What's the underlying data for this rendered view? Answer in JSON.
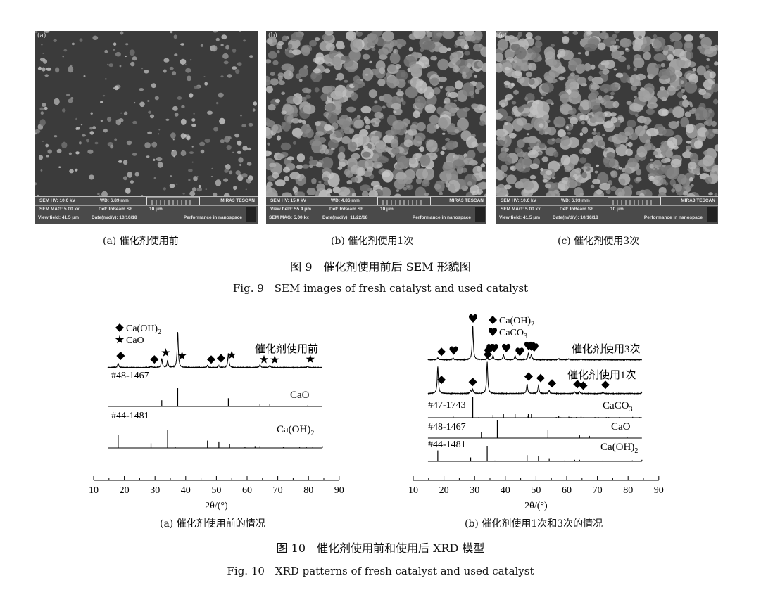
{
  "fig9": {
    "images": [
      {
        "tag": "(a)",
        "caption": "(a) 催化剂使用前",
        "density": 0.35,
        "info": {
          "r1a": "SEM HV: 10.0 kV",
          "r1b": "WD: 6.89 mm",
          "brand": "MIRA3 TESCAN",
          "r2a": "SEM MAG: 5.00 kx",
          "r2b": "Det: InBeam SE",
          "scale": "10 μm",
          "r3a": "View field: 41.5 μm",
          "r3b": "Date(m/d/y): 10/10/18",
          "perf": "Performance in nanospace"
        }
      },
      {
        "tag": "(b)",
        "caption": "(b) 催化剂使用1次",
        "density": 1.0,
        "info": {
          "r1a": "SEM HV: 15.0 kV",
          "r1b": "WD: 4.86 mm",
          "brand": "MIRA3 TESCAN",
          "r2a": "View field: 55.4 μm",
          "r2b": "Det: InBeam SE",
          "scale": "10 μm",
          "r3a": "SEM MAG: 5.00 kx",
          "r3b": "Date(m/d/y): 11/22/18",
          "perf": "Performance in nanospace"
        }
      },
      {
        "tag": "(c)",
        "caption": "(c) 催化剂使用3次",
        "density": 1.1,
        "info": {
          "r1a": "SEM HV: 10.0 kV",
          "r1b": "WD: 6.93 mm",
          "brand": "MIRA3 TESCAN",
          "r2a": "SEM MAG: 5.00 kx",
          "r2b": "Det: InBeam SE",
          "scale": "10 μm",
          "r3a": "View field: 41.5 μm",
          "r3b": "Date(m/d/y): 10/10/18",
          "perf": "Performance in nanospace"
        }
      }
    ],
    "title": "图 9　催化剂使用前后 SEM 形貌图",
    "title_en": "Fig. 9　SEM images of fresh catalyst and used catalyst"
  },
  "fig10": {
    "title": "图 10　催化剂使用前和使用后 XRD 模型",
    "title_en": "Fig. 10　XRD patterns of fresh catalyst and used catalyst"
  },
  "chart_data": [
    {
      "type": "line",
      "caption": "(a) 催化剂使用前的情况",
      "xlabel": "2θ/(°)",
      "xlim": [
        10,
        90
      ],
      "xticks": [
        10,
        20,
        30,
        40,
        50,
        60,
        70,
        80,
        90
      ],
      "legend": [
        {
          "symbol": "diamond",
          "label": "Ca(OH)2"
        },
        {
          "symbol": "star",
          "label": "CaO"
        }
      ],
      "patterns": [
        {
          "label": "催化剂使用前",
          "peaks": [
            [
              18.0,
              0.12
            ],
            [
              28.7,
              0.04
            ],
            [
              32.2,
              0.25
            ],
            [
              34.1,
              0.2
            ],
            [
              37.4,
              1.0
            ],
            [
              47.1,
              0.06
            ],
            [
              50.8,
              0.05
            ],
            [
              53.9,
              0.4
            ],
            [
              64.2,
              0.08
            ],
            [
              67.4,
              0.06
            ],
            [
              79.7,
              0.03
            ]
          ],
          "markers": [
            [
              18.8,
              "diamond"
            ],
            [
              29.8,
              "diamond"
            ],
            [
              33.5,
              "star"
            ],
            [
              38.8,
              "star"
            ],
            [
              48.3,
              "diamond"
            ],
            [
              51.5,
              "diamond"
            ],
            [
              55.0,
              "star"
            ],
            [
              65.5,
              "star"
            ],
            [
              69.0,
              "star"
            ],
            [
              80.6,
              "star"
            ]
          ]
        }
      ],
      "references": [
        {
          "pdf": "#48-1467",
          "phase": "CaO",
          "lines": [
            [
              32.2,
              0.34
            ],
            [
              37.4,
              1.0
            ],
            [
              53.9,
              0.45
            ],
            [
              64.2,
              0.15
            ],
            [
              67.4,
              0.12
            ],
            [
              79.7,
              0.05
            ]
          ]
        },
        {
          "pdf": "#44-1481",
          "phase": "Ca(OH)2",
          "lines": [
            [
              18.0,
              0.7
            ],
            [
              28.7,
              0.25
            ],
            [
              34.1,
              1.0
            ],
            [
              36.6,
              0.05
            ],
            [
              47.1,
              0.4
            ],
            [
              50.8,
              0.35
            ],
            [
              54.3,
              0.2
            ],
            [
              59.3,
              0.05
            ],
            [
              62.6,
              0.1
            ],
            [
              64.2,
              0.1
            ],
            [
              71.8,
              0.05
            ],
            [
              77.1,
              0.04
            ],
            [
              79.3,
              0.04
            ],
            [
              81.4,
              0.06
            ],
            [
              84.5,
              0.1
            ]
          ]
        }
      ]
    },
    {
      "type": "line",
      "caption": "(b) 催化剂使用1次和3次的情况",
      "xlabel": "2θ/(°)",
      "xlim": [
        10,
        90
      ],
      "xticks": [
        10,
        20,
        30,
        40,
        50,
        60,
        70,
        80,
        90
      ],
      "legend": [
        {
          "symbol": "diamond",
          "label": "Ca(OH)2"
        },
        {
          "symbol": "heart",
          "label": "CaCO3"
        }
      ],
      "patterns": [
        {
          "label": "催化剂使用3次",
          "peaks": [
            [
              18.0,
              0.06
            ],
            [
              23.0,
              0.05
            ],
            [
              29.4,
              1.0
            ],
            [
              34.1,
              0.06
            ],
            [
              36.0,
              0.12
            ],
            [
              39.4,
              0.15
            ],
            [
              43.2,
              0.12
            ],
            [
              47.5,
              0.18
            ],
            [
              48.5,
              0.16
            ],
            [
              57.4,
              0.03
            ],
            [
              60.7,
              0.03
            ],
            [
              64.7,
              0.02
            ]
          ],
          "markers": [
            [
              19.2,
              "diamond"
            ],
            [
              23.2,
              "heart"
            ],
            [
              29.5,
              "heart"
            ],
            [
              34.4,
              "diamond"
            ],
            [
              35.3,
              "heart"
            ],
            [
              36.3,
              "heart"
            ],
            [
              40.3,
              "heart"
            ],
            [
              44.7,
              "heart"
            ],
            [
              47.6,
              "heart"
            ],
            [
              48.5,
              "heart"
            ],
            [
              49.4,
              "heart"
            ]
          ]
        },
        {
          "label": "催化剂使用1次",
          "peaks": [
            [
              18.0,
              0.85
            ],
            [
              28.7,
              0.1
            ],
            [
              29.4,
              0.12
            ],
            [
              34.1,
              1.0
            ],
            [
              47.1,
              0.3
            ],
            [
              50.8,
              0.25
            ],
            [
              54.3,
              0.1
            ],
            [
              62.6,
              0.05
            ],
            [
              64.2,
              0.06
            ],
            [
              71.8,
              0.04
            ],
            [
              84.5,
              0.03
            ]
          ],
          "markers": [
            [
              19.2,
              "diamond"
            ],
            [
              29.4,
              "diamond"
            ],
            [
              34.3,
              "diamond"
            ],
            [
              47.6,
              "diamond"
            ],
            [
              51.5,
              "diamond"
            ],
            [
              55.2,
              "diamond"
            ],
            [
              63.5,
              "diamond"
            ],
            [
              65.4,
              "diamond"
            ],
            [
              72.6,
              "diamond"
            ]
          ]
        }
      ],
      "references": [
        {
          "pdf": "#47-1743",
          "phase": "CaCO3",
          "lines": [
            [
              23.0,
              0.1
            ],
            [
              29.4,
              1.0
            ],
            [
              31.4,
              0.03
            ],
            [
              36.0,
              0.13
            ],
            [
              39.4,
              0.18
            ],
            [
              43.2,
              0.18
            ],
            [
              47.1,
              0.08
            ],
            [
              47.5,
              0.17
            ],
            [
              48.5,
              0.17
            ],
            [
              56.6,
              0.03
            ],
            [
              57.4,
              0.08
            ],
            [
              58.1,
              0.02
            ],
            [
              60.7,
              0.05
            ],
            [
              61.0,
              0.03
            ],
            [
              61.4,
              0.03
            ],
            [
              63.1,
              0.03
            ],
            [
              64.7,
              0.05
            ],
            [
              65.6,
              0.03
            ],
            [
              69.2,
              0.03
            ],
            [
              70.3,
              0.03
            ],
            [
              72.9,
              0.03
            ],
            [
              73.7,
              0.03
            ],
            [
              77.2,
              0.03
            ],
            [
              81.5,
              0.04
            ],
            [
              83.8,
              0.03
            ]
          ]
        },
        {
          "pdf": "#48-1467",
          "phase": "CaO",
          "lines": [
            [
              32.2,
              0.34
            ],
            [
              37.4,
              1.0
            ],
            [
              53.9,
              0.45
            ],
            [
              64.2,
              0.15
            ],
            [
              67.4,
              0.12
            ],
            [
              79.7,
              0.05
            ]
          ]
        },
        {
          "pdf": "#44-1481",
          "phase": "Ca(OH)2",
          "lines": [
            [
              18.0,
              0.7
            ],
            [
              28.7,
              0.25
            ],
            [
              34.1,
              1.0
            ],
            [
              36.6,
              0.05
            ],
            [
              47.1,
              0.4
            ],
            [
              50.8,
              0.35
            ],
            [
              54.3,
              0.2
            ],
            [
              59.3,
              0.05
            ],
            [
              62.6,
              0.1
            ],
            [
              64.2,
              0.1
            ],
            [
              71.8,
              0.05
            ],
            [
              77.1,
              0.04
            ],
            [
              79.3,
              0.04
            ],
            [
              81.4,
              0.06
            ],
            [
              84.5,
              0.1
            ]
          ]
        }
      ]
    }
  ]
}
